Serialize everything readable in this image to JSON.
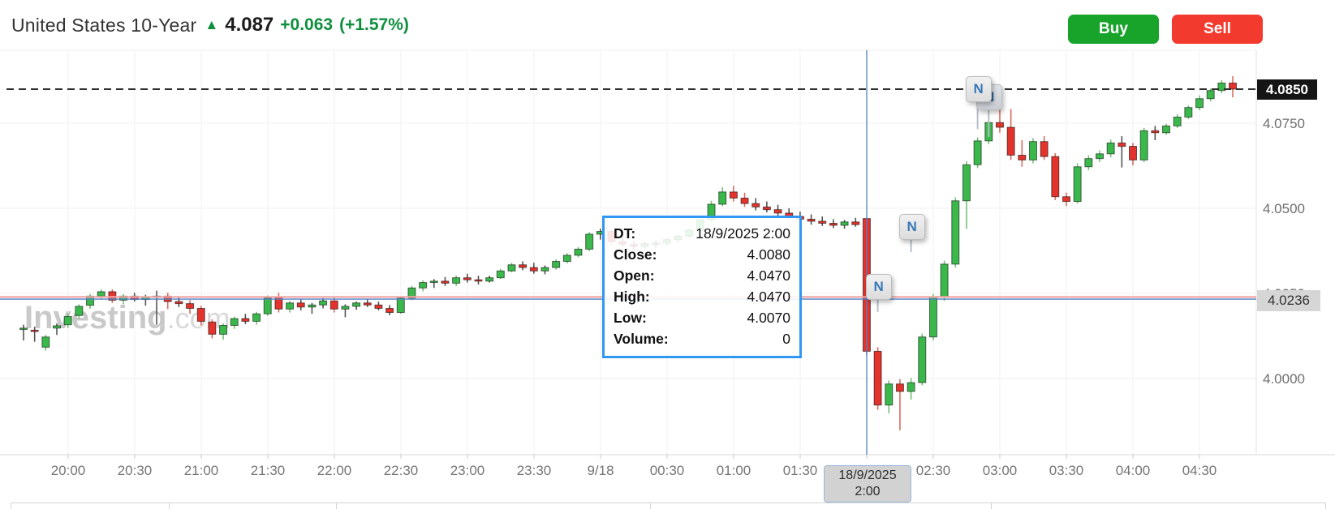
{
  "header": {
    "title": "United States 10-Year",
    "arrow": "▲",
    "price": "4.087",
    "change": "+0.063",
    "change_pct": "(+1.57%)"
  },
  "actions": {
    "buy": "Buy",
    "sell": "Sell"
  },
  "watermark": {
    "brand": "Investing",
    "domain": ".com"
  },
  "tooltip": {
    "rows": [
      {
        "label": "DT:",
        "value": "18/9/2025 2:00"
      },
      {
        "label": "Close:",
        "value": "4.0080"
      },
      {
        "label": "Open:",
        "value": "4.0470"
      },
      {
        "label": "High:",
        "value": "4.0470"
      },
      {
        "label": "Low:",
        "value": "4.0070"
      },
      {
        "label": "Volume:",
        "value": "0"
      }
    ]
  },
  "crosshair": {
    "date_line1": "18/9/2025",
    "date_line2": "2:00",
    "price_label": "4.0236",
    "time_index": 12
  },
  "price_axis": {
    "current": {
      "label": "4.0850",
      "value": 4.085
    },
    "ticks": [
      {
        "label": "4.0750",
        "value": 4.075
      },
      {
        "label": "4.0500",
        "value": 4.05
      },
      {
        "label": "4.0250",
        "value": 4.025
      },
      {
        "label": "4.0000",
        "value": 4.0
      }
    ]
  },
  "time_axis": {
    "labels": [
      "20:00",
      "20:30",
      "21:00",
      "21:30",
      "22:00",
      "22:30",
      "23:00",
      "23:30",
      "9/18",
      "00:30",
      "01:00",
      "01:30",
      "02:00",
      "02:30",
      "03:00",
      "03:30",
      "04:00",
      "04:30"
    ]
  },
  "news_markers": [
    {
      "letter": "N",
      "candle": 77,
      "price": 4.0272,
      "stem": 22,
      "back": false
    },
    {
      "letter": "N",
      "candle": 80,
      "price": 4.0448,
      "stem": 22,
      "back": false
    },
    {
      "letter": "N",
      "candle": 87,
      "price": 4.0829,
      "stem": 40,
      "back": true
    },
    {
      "letter": "N",
      "candle": 86,
      "price": 4.0852,
      "stem": 40,
      "back": false
    }
  ],
  "colors": {
    "up": "#3bb84b",
    "down": "#e2342c",
    "up_wick": "#74c178",
    "down_wick": "#d96c60",
    "doji_wick": "#555555",
    "buy": "#18a32b",
    "sell": "#f23b2e",
    "crosshair": "#4e82c8",
    "prev_close_line": "#f2a6a6",
    "current_price_line": "#2e2e2e",
    "positive_text": "#0e8f3e"
  },
  "chart_data": {
    "type": "candlestick",
    "instrument": "United States 10-Year",
    "interval": "5m",
    "first_candle_time": "19:40",
    "columns": [
      "open",
      "high",
      "low",
      "close"
    ],
    "prev_close": 4.0236,
    "current_price": 4.085,
    "ylim": [
      3.982,
      4.09
    ],
    "candles": [
      [
        4.0145,
        4.0158,
        4.0112,
        4.0148
      ],
      [
        4.0142,
        4.0152,
        4.0108,
        4.0138
      ],
      [
        4.0092,
        4.0128,
        4.0082,
        4.0122
      ],
      [
        4.0148,
        4.0162,
        4.0128,
        4.0155
      ],
      [
        4.0158,
        4.0192,
        4.0148,
        4.0182
      ],
      [
        4.0185,
        4.0218,
        4.0175,
        4.0212
      ],
      [
        4.0215,
        4.0248,
        4.0205,
        4.0242
      ],
      [
        4.0242,
        4.0262,
        4.0232,
        4.0255
      ],
      [
        4.0255,
        4.0262,
        4.0222,
        4.023
      ],
      [
        4.023,
        4.0248,
        4.0218,
        4.0242
      ],
      [
        4.0242,
        4.0252,
        4.0226,
        4.0232
      ],
      [
        4.0232,
        4.0246,
        4.0214,
        4.0238
      ],
      [
        4.0238,
        4.0258,
        4.0158,
        4.0242
      ],
      [
        4.0242,
        4.0252,
        4.0204,
        4.0226
      ],
      [
        4.0226,
        4.0238,
        4.021,
        4.022
      ],
      [
        4.022,
        4.023,
        4.019,
        4.0206
      ],
      [
        4.0206,
        4.0214,
        4.0156,
        4.0168
      ],
      [
        4.0166,
        4.0174,
        4.0118,
        4.013
      ],
      [
        4.013,
        4.0162,
        4.0114,
        4.0156
      ],
      [
        4.0156,
        4.0182,
        4.0146,
        4.0176
      ],
      [
        4.0176,
        4.019,
        4.016,
        4.0168
      ],
      [
        4.0168,
        4.0196,
        4.0158,
        4.019
      ],
      [
        4.019,
        4.0244,
        4.0184,
        4.0236
      ],
      [
        4.0238,
        4.0252,
        4.0194,
        4.0204
      ],
      [
        4.0204,
        4.0228,
        4.0194,
        4.0222
      ],
      [
        4.0222,
        4.0232,
        4.02,
        4.021
      ],
      [
        4.021,
        4.0222,
        4.019,
        4.0216
      ],
      [
        4.0216,
        4.0236,
        4.0206,
        4.0228
      ],
      [
        4.0228,
        4.0238,
        4.0194,
        4.0204
      ],
      [
        4.0204,
        4.0218,
        4.018,
        4.0212
      ],
      [
        4.0212,
        4.0226,
        4.0202,
        4.0222
      ],
      [
        4.0222,
        4.0232,
        4.021,
        4.0216
      ],
      [
        4.0216,
        4.0226,
        4.02,
        4.0206
      ],
      [
        4.0206,
        4.0216,
        4.0186,
        4.0194
      ],
      [
        4.0194,
        4.0242,
        4.019,
        4.0236
      ],
      [
        4.0236,
        4.0272,
        4.023,
        4.0266
      ],
      [
        4.0266,
        4.0288,
        4.0256,
        4.0282
      ],
      [
        4.0282,
        4.0292,
        4.0266,
        4.0286
      ],
      [
        4.0286,
        4.0298,
        4.0272,
        4.028
      ],
      [
        4.028,
        4.0302,
        4.0272,
        4.0296
      ],
      [
        4.0296,
        4.0308,
        4.0282,
        4.029
      ],
      [
        4.029,
        4.0302,
        4.0276,
        4.0286
      ],
      [
        4.0286,
        4.0302,
        4.0282,
        4.0296
      ],
      [
        4.0296,
        4.0322,
        4.0292,
        4.0316
      ],
      [
        4.0316,
        4.034,
        4.0312,
        4.0334
      ],
      [
        4.0334,
        4.0344,
        4.0318,
        4.0326
      ],
      [
        4.0326,
        4.034,
        4.0308,
        4.0316
      ],
      [
        4.0316,
        4.0332,
        4.0306,
        4.0326
      ],
      [
        4.0326,
        4.035,
        4.032,
        4.0344
      ],
      [
        4.0344,
        4.0368,
        4.0338,
        4.0362
      ],
      [
        4.0362,
        4.0386,
        4.0356,
        4.038
      ],
      [
        4.038,
        4.043,
        4.0374,
        4.0424
      ],
      [
        4.0424,
        4.044,
        4.0408,
        4.0432
      ],
      [
        4.0432,
        4.0438,
        4.0394,
        4.0402
      ],
      [
        4.0402,
        4.0414,
        4.0386,
        4.0394
      ],
      [
        4.0394,
        4.0404,
        4.0378,
        4.0388
      ],
      [
        4.0388,
        4.0402,
        4.038,
        4.0396
      ],
      [
        4.0396,
        4.0406,
        4.0384,
        4.0398
      ],
      [
        4.0398,
        4.0412,
        4.039,
        4.0408
      ],
      [
        4.0408,
        4.0424,
        4.04,
        4.0418
      ],
      [
        4.0418,
        4.0442,
        4.0412,
        4.0436
      ],
      [
        4.0436,
        4.0472,
        4.043,
        4.0466
      ],
      [
        4.0466,
        4.0522,
        4.046,
        4.0512
      ],
      [
        4.0512,
        4.0562,
        4.0506,
        4.0548
      ],
      [
        4.0548,
        4.0566,
        4.052,
        4.053
      ],
      [
        4.053,
        4.0546,
        4.0504,
        4.0514
      ],
      [
        4.0514,
        4.053,
        4.0494,
        4.0504
      ],
      [
        4.0504,
        4.052,
        4.0488,
        4.0496
      ],
      [
        4.0496,
        4.051,
        4.0478,
        4.0486
      ],
      [
        4.0486,
        4.05,
        4.0468,
        4.0476
      ],
      [
        4.0476,
        4.049,
        4.046,
        4.0468
      ],
      [
        4.0468,
        4.0482,
        4.0452,
        4.0462
      ],
      [
        4.0462,
        4.0476,
        4.0448,
        4.0456
      ],
      [
        4.0456,
        4.0468,
        4.0442,
        4.045
      ],
      [
        4.045,
        4.0466,
        4.044,
        4.046
      ],
      [
        4.046,
        4.0472,
        4.0446,
        4.0452
      ],
      [
        4.047,
        4.047,
        4.007,
        4.008
      ],
      [
        4.008,
        4.0092,
        3.9908,
        3.9922
      ],
      [
        3.9922,
        3.9994,
        3.9898,
        3.9984
      ],
      [
        3.9984,
        3.9998,
        3.9848,
        3.9962
      ],
      [
        3.9962,
        4.0002,
        3.9938,
        3.9988
      ],
      [
        3.9988,
        4.0132,
        3.998,
        4.0122
      ],
      [
        4.0122,
        4.0248,
        4.0112,
        4.0238
      ],
      [
        4.0238,
        4.0346,
        4.0228,
        4.0336
      ],
      [
        4.0336,
        4.0532,
        4.0326,
        4.0522
      ],
      [
        4.0522,
        4.0638,
        4.044,
        4.0628
      ],
      [
        4.0628,
        4.0708,
        4.0618,
        4.0698
      ],
      [
        4.0698,
        4.0762,
        4.0688,
        4.0752
      ],
      [
        4.0752,
        4.0802,
        4.0722,
        4.0738
      ],
      [
        4.0738,
        4.0792,
        4.0642,
        4.0656
      ],
      [
        4.0656,
        4.07,
        4.0622,
        4.0642
      ],
      [
        4.0642,
        4.0706,
        4.0632,
        4.0696
      ],
      [
        4.0696,
        4.0712,
        4.0642,
        4.0652
      ],
      [
        4.0652,
        4.0662,
        4.0524,
        4.0534
      ],
      [
        4.0534,
        4.0546,
        4.0506,
        4.052
      ],
      [
        4.052,
        4.0632,
        4.0514,
        4.0622
      ],
      [
        4.0622,
        4.0656,
        4.0612,
        4.0646
      ],
      [
        4.0646,
        4.067,
        4.0636,
        4.066
      ],
      [
        4.066,
        4.0702,
        4.065,
        4.0692
      ],
      [
        4.0692,
        4.0712,
        4.062,
        4.0682
      ],
      [
        4.0682,
        4.0692,
        4.0626,
        4.0642
      ],
      [
        4.0642,
        4.0736,
        4.0636,
        4.0728
      ],
      [
        4.0728,
        4.0742,
        4.07,
        4.0722
      ],
      [
        4.0722,
        4.0748,
        4.0716,
        4.0742
      ],
      [
        4.0742,
        4.0776,
        4.0736,
        4.0768
      ],
      [
        4.0768,
        4.0802,
        4.0762,
        4.0796
      ],
      [
        4.0796,
        4.0832,
        4.0788,
        4.0822
      ],
      [
        4.0822,
        4.0852,
        4.0814,
        4.0846
      ],
      [
        4.0846,
        4.0876,
        4.0838,
        4.0868
      ],
      [
        4.0868,
        4.0888,
        4.0826,
        4.085
      ]
    ]
  }
}
